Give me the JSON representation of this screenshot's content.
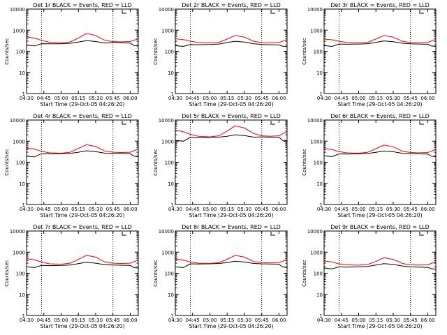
{
  "figure": {
    "colors": {
      "background": "#ffffff",
      "axes": "#000000",
      "events": "#000000",
      "lld": "#ff0000",
      "marker": "#000000"
    }
  },
  "chart_data": [
    {
      "type": "line",
      "title": "Det 1r BLACK = Events, RED = LLD",
      "xlabel": "Start Time (29-Oct-05 04:26:20)",
      "ylabel": "Counts/sec",
      "x_ticks": [
        "04:30",
        "04:45",
        "05:00",
        "05:15",
        "05:30",
        "05:45",
        "06:00"
      ],
      "y_ticks": [
        "1",
        "10",
        "100",
        "1000",
        "10000"
      ],
      "y_scale": "log",
      "ylim": [
        1,
        10000
      ],
      "xlim": [
        "04:30",
        "06:07"
      ],
      "reference_lines": [
        "04:43",
        "05:45"
      ],
      "grid": false,
      "legend": "none",
      "series": [
        {
          "color": "#000000",
          "x": [
            "04:30",
            "04:37",
            "04:43",
            "04:50",
            "05:00",
            "05:08",
            "05:15",
            "05:22",
            "05:30",
            "05:38",
            "05:45",
            "05:52",
            "06:00",
            "06:03",
            "06:07"
          ],
          "values": [
            195,
            180,
            230,
            225,
            228,
            240,
            275,
            320,
            290,
            245,
            260,
            255,
            245,
            190,
            175
          ]
        },
        {
          "color": "#ff0000",
          "x": [
            "04:30",
            "04:37",
            "04:43",
            "04:50",
            "05:00",
            "05:08",
            "05:15",
            "05:22",
            "05:30",
            "05:38",
            "05:45",
            "05:52",
            "06:00",
            "06:07"
          ],
          "values": [
            480,
            420,
            330,
            270,
            250,
            280,
            420,
            700,
            560,
            330,
            290,
            280,
            290,
            390
          ]
        }
      ]
    },
    {
      "type": "line",
      "title": "Det 2r BLACK = Events, RED = LLD",
      "xlabel": "Start Time (29-Oct-05 04:26:20)",
      "ylabel": "Counts/sec",
      "x_ticks": [
        "04:30",
        "04:45",
        "05:00",
        "05:15",
        "05:30",
        "05:45",
        "06:00"
      ],
      "y_ticks": [
        "1",
        "10",
        "100",
        "1000",
        "10000"
      ],
      "y_scale": "log",
      "ylim": [
        1,
        10000
      ],
      "xlim": [
        "04:30",
        "06:07"
      ],
      "reference_lines": [
        "04:43",
        "05:45"
      ],
      "grid": false,
      "legend": "none",
      "series": [
        {
          "color": "#000000",
          "x": [
            "04:30",
            "04:37",
            "04:43",
            "04:50",
            "05:00",
            "05:08",
            "05:15",
            "05:22",
            "05:30",
            "05:38",
            "05:45",
            "05:52",
            "06:00",
            "06:03",
            "06:07"
          ],
          "values": [
            185,
            170,
            210,
            205,
            210,
            220,
            260,
            300,
            275,
            230,
            210,
            205,
            200,
            175,
            165
          ]
        },
        {
          "color": "#ff0000",
          "x": [
            "04:30",
            "04:37",
            "04:43",
            "04:50",
            "05:00",
            "05:08",
            "05:15",
            "05:22",
            "05:30",
            "05:38",
            "05:45",
            "05:52",
            "06:00",
            "06:07"
          ],
          "values": [
            390,
            360,
            300,
            260,
            250,
            270,
            380,
            560,
            470,
            300,
            260,
            250,
            260,
            360
          ]
        }
      ]
    },
    {
      "type": "line",
      "title": "Det 3r BLACK = Events, RED = LLD",
      "xlabel": "Start Time (29-Oct-05 04:26:20)",
      "ylabel": "Counts/sec",
      "x_ticks": [
        "04:30",
        "04:45",
        "05:00",
        "05:15",
        "05:30",
        "05:45",
        "06:00"
      ],
      "y_ticks": [
        "1",
        "10",
        "100",
        "1000",
        "10000"
      ],
      "y_scale": "log",
      "ylim": [
        1,
        10000
      ],
      "xlim": [
        "04:30",
        "06:07"
      ],
      "reference_lines": [
        "04:43",
        "05:45"
      ],
      "grid": false,
      "legend": "none",
      "series": [
        {
          "color": "#000000",
          "x": [
            "04:30",
            "04:37",
            "04:43",
            "04:50",
            "05:00",
            "05:08",
            "05:15",
            "05:22",
            "05:30",
            "05:38",
            "05:45",
            "05:52",
            "06:00",
            "06:03",
            "06:07"
          ],
          "values": [
            185,
            170,
            220,
            215,
            220,
            230,
            265,
            310,
            285,
            240,
            225,
            220,
            215,
            180,
            170
          ]
        },
        {
          "color": "#ff0000",
          "x": [
            "04:30",
            "04:37",
            "04:43",
            "04:50",
            "05:00",
            "05:08",
            "05:15",
            "05:22",
            "05:30",
            "05:38",
            "05:45",
            "05:52",
            "06:00",
            "06:07"
          ],
          "values": [
            380,
            350,
            300,
            260,
            250,
            270,
            380,
            560,
            470,
            300,
            260,
            255,
            265,
            370
          ]
        }
      ]
    },
    {
      "type": "line",
      "title": "Det 4r BLACK = Events, RED = LLD",
      "xlabel": "Start Time (29-Oct-05 04:26:20)",
      "ylabel": "Counts/sec",
      "x_ticks": [
        "04:30",
        "04:45",
        "05:00",
        "05:15",
        "05:30",
        "05:45",
        "06:00"
      ],
      "y_ticks": [
        "1",
        "10",
        "100",
        "1000",
        "10000"
      ],
      "y_scale": "log",
      "ylim": [
        1,
        10000
      ],
      "xlim": [
        "04:30",
        "06:07"
      ],
      "reference_lines": [
        "04:43",
        "05:45"
      ],
      "grid": false,
      "legend": "none",
      "series": [
        {
          "color": "#000000",
          "x": [
            "04:30",
            "04:37",
            "04:43",
            "04:50",
            "05:00",
            "05:08",
            "05:15",
            "05:22",
            "05:30",
            "05:38",
            "05:45",
            "05:52",
            "06:00",
            "06:03",
            "06:07"
          ],
          "values": [
            195,
            180,
            255,
            250,
            255,
            265,
            300,
            350,
            320,
            270,
            265,
            260,
            255,
            195,
            180
          ]
        },
        {
          "color": "#ff0000",
          "x": [
            "04:30",
            "04:37",
            "04:43",
            "04:50",
            "05:00",
            "05:08",
            "05:15",
            "05:22",
            "05:30",
            "05:38",
            "05:45",
            "05:52",
            "06:00",
            "06:07"
          ],
          "values": [
            470,
            420,
            330,
            280,
            270,
            300,
            450,
            680,
            560,
            340,
            300,
            290,
            300,
            420
          ]
        }
      ]
    },
    {
      "type": "line",
      "title": "Det 5r BLACK = Events, RED = LLD",
      "xlabel": "Start Time (29-Oct-05 04:26:20)",
      "ylabel": "Counts/sec",
      "x_ticks": [
        "04:30",
        "04:45",
        "05:00",
        "05:15",
        "05:30",
        "05:45",
        "06:00"
      ],
      "y_ticks": [
        "1",
        "10",
        "100",
        "1000",
        "10000"
      ],
      "y_scale": "log",
      "ylim": [
        1,
        10000
      ],
      "xlim": [
        "04:30",
        "06:07"
      ],
      "reference_lines": [
        "04:43",
        "05:45"
      ],
      "grid": false,
      "legend": "none",
      "series": [
        {
          "color": "#000000",
          "x": [
            "04:30",
            "04:37",
            "04:43",
            "04:50",
            "05:00",
            "05:08",
            "05:15",
            "05:22",
            "05:30",
            "05:38",
            "05:45",
            "05:52",
            "06:00",
            "06:03",
            "06:07"
          ],
          "values": [
            1100,
            1000,
            1500,
            1450,
            1500,
            1550,
            1700,
            2000,
            1850,
            1550,
            1600,
            1550,
            1500,
            1100,
            1050
          ]
        },
        {
          "color": "#ff0000",
          "x": [
            "04:30",
            "04:37",
            "04:43",
            "04:50",
            "05:00",
            "05:08",
            "05:15",
            "05:22",
            "05:30",
            "05:38",
            "05:45",
            "05:52",
            "06:00",
            "06:07"
          ],
          "values": [
            3300,
            2800,
            2100,
            1700,
            1600,
            1800,
            3000,
            5300,
            4200,
            2300,
            1800,
            1700,
            1800,
            2900
          ]
        }
      ]
    },
    {
      "type": "line",
      "title": "Det 6r BLACK = Events, RED = LLD",
      "xlabel": "Start Time (29-Oct-05 04:26:20)",
      "ylabel": "Counts/sec",
      "x_ticks": [
        "04:30",
        "04:45",
        "05:00",
        "05:15",
        "05:30",
        "05:45",
        "06:00"
      ],
      "y_ticks": [
        "1",
        "10",
        "100",
        "1000",
        "10000"
      ],
      "y_scale": "log",
      "ylim": [
        1,
        10000
      ],
      "xlim": [
        "04:30",
        "06:07"
      ],
      "reference_lines": [
        "04:43",
        "05:45"
      ],
      "grid": false,
      "legend": "none",
      "series": [
        {
          "color": "#000000",
          "x": [
            "04:30",
            "04:37",
            "04:43",
            "04:50",
            "05:00",
            "05:08",
            "05:15",
            "05:22",
            "05:30",
            "05:38",
            "05:45",
            "05:52",
            "06:00",
            "06:03",
            "06:07"
          ],
          "values": [
            200,
            185,
            250,
            245,
            250,
            260,
            295,
            340,
            315,
            265,
            255,
            250,
            245,
            195,
            180
          ]
        },
        {
          "color": "#ff0000",
          "x": [
            "04:30",
            "04:37",
            "04:43",
            "04:50",
            "05:00",
            "05:08",
            "05:15",
            "05:22",
            "05:30",
            "05:38",
            "05:45",
            "05:52",
            "06:00",
            "06:07"
          ],
          "values": [
            450,
            400,
            320,
            280,
            270,
            300,
            440,
            650,
            540,
            330,
            290,
            280,
            290,
            400
          ]
        }
      ]
    },
    {
      "type": "line",
      "title": "Det 7r BLACK = Events, RED = LLD",
      "xlabel": "Start Time (29-Oct-05 04:26:20)",
      "ylabel": "Counts/sec",
      "x_ticks": [
        "04:30",
        "04:45",
        "05:00",
        "05:15",
        "05:30",
        "05:45",
        "06:00"
      ],
      "y_ticks": [
        "1",
        "10",
        "100",
        "1000",
        "10000"
      ],
      "y_scale": "log",
      "ylim": [
        1,
        10000
      ],
      "xlim": [
        "04:30",
        "06:07"
      ],
      "reference_lines": [
        "04:43",
        "05:45"
      ],
      "grid": false,
      "legend": "none",
      "series": [
        {
          "color": "#000000",
          "x": [
            "04:30",
            "04:37",
            "04:43",
            "04:50",
            "05:00",
            "05:08",
            "05:15",
            "05:22",
            "05:30",
            "05:38",
            "05:45",
            "05:52",
            "06:00",
            "06:03",
            "06:07"
          ],
          "values": [
            200,
            185,
            235,
            230,
            235,
            245,
            285,
            330,
            300,
            255,
            245,
            240,
            235,
            190,
            175
          ]
        },
        {
          "color": "#ff0000",
          "x": [
            "04:30",
            "04:37",
            "04:43",
            "04:50",
            "05:00",
            "05:08",
            "05:15",
            "05:22",
            "05:30",
            "05:38",
            "05:45",
            "05:52",
            "06:00",
            "06:07"
          ],
          "values": [
            490,
            430,
            340,
            280,
            270,
            300,
            450,
            700,
            580,
            340,
            300,
            290,
            300,
            420
          ]
        }
      ]
    },
    {
      "type": "line",
      "title": "Det 8r BLACK = Events, RED = LLD",
      "xlabel": "Start Time (29-Oct-05 04:26:20)",
      "ylabel": "Counts/sec",
      "x_ticks": [
        "04:30",
        "04:45",
        "05:00",
        "05:15",
        "05:30",
        "05:45",
        "06:00"
      ],
      "y_ticks": [
        "1",
        "10",
        "100",
        "1000",
        "10000"
      ],
      "y_scale": "log",
      "ylim": [
        1,
        10000
      ],
      "xlim": [
        "04:30",
        "06:07"
      ],
      "reference_lines": [
        "04:43",
        "05:45"
      ],
      "grid": false,
      "legend": "none",
      "series": [
        {
          "color": "#000000",
          "x": [
            "04:30",
            "04:37",
            "04:43",
            "04:50",
            "05:00",
            "05:08",
            "05:15",
            "05:22",
            "05:30",
            "05:38",
            "05:45",
            "05:52",
            "06:00",
            "06:03",
            "06:07"
          ],
          "values": [
            200,
            185,
            280,
            275,
            280,
            290,
            320,
            370,
            340,
            290,
            280,
            275,
            270,
            200,
            185
          ]
        },
        {
          "color": "#ff0000",
          "x": [
            "04:30",
            "04:37",
            "04:43",
            "04:50",
            "05:00",
            "05:08",
            "05:15",
            "05:22",
            "05:30",
            "05:38",
            "05:45",
            "05:52",
            "06:00",
            "06:07"
          ],
          "values": [
            470,
            420,
            340,
            300,
            290,
            320,
            460,
            700,
            580,
            360,
            320,
            310,
            320,
            440
          ]
        }
      ]
    },
    {
      "type": "line",
      "title": "Det 9r BLACK = Events, RED = LLD",
      "xlabel": "Start Time (29-Oct-05 04:26:20)",
      "ylabel": "Counts/sec",
      "x_ticks": [
        "04:30",
        "04:45",
        "05:00",
        "05:15",
        "05:30",
        "05:45",
        "06:00"
      ],
      "y_ticks": [
        "1",
        "10",
        "100",
        "1000",
        "10000"
      ],
      "y_scale": "log",
      "ylim": [
        1,
        10000
      ],
      "xlim": [
        "04:30",
        "06:07"
      ],
      "reference_lines": [
        "04:43",
        "05:45"
      ],
      "grid": false,
      "legend": "none",
      "series": [
        {
          "color": "#000000",
          "x": [
            "04:30",
            "04:37",
            "04:43",
            "04:50",
            "05:00",
            "05:08",
            "05:15",
            "05:22",
            "05:30",
            "05:38",
            "05:45",
            "05:52",
            "06:00",
            "06:03",
            "06:07"
          ],
          "values": [
            175,
            160,
            200,
            195,
            200,
            210,
            245,
            285,
            260,
            220,
            200,
            195,
            190,
            165,
            155
          ]
        },
        {
          "color": "#ff0000",
          "x": [
            "04:30",
            "04:37",
            "04:43",
            "04:50",
            "05:00",
            "05:08",
            "05:15",
            "05:22",
            "05:30",
            "05:38",
            "05:45",
            "05:52",
            "06:00",
            "06:07"
          ],
          "values": [
            380,
            340,
            280,
            250,
            240,
            260,
            360,
            540,
            450,
            290,
            250,
            245,
            250,
            350
          ]
        }
      ]
    }
  ]
}
